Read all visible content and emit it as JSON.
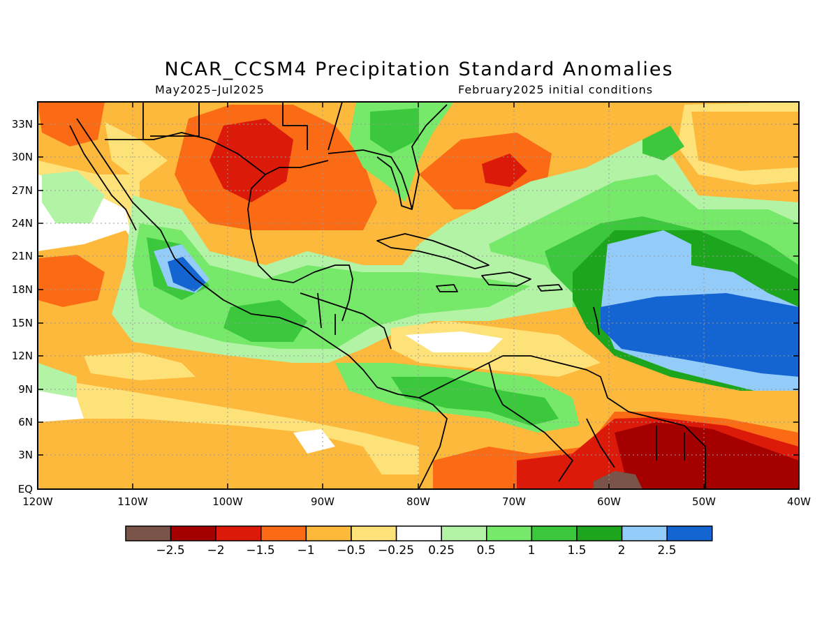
{
  "header": {
    "title": "NCAR_CCSM4 Precipitation Standard Anomalies",
    "period": "May2025–Jul2025",
    "init": "February2025 initial conditions"
  },
  "axes": {
    "lat_labels": [
      "33N",
      "30N",
      "27N",
      "24N",
      "21N",
      "18N",
      "15N",
      "12N",
      "9N",
      "6N",
      "3N",
      "EQ"
    ],
    "lon_labels": [
      "120W",
      "110W",
      "100W",
      "90W",
      "80W",
      "70W",
      "60W",
      "50W",
      "40W"
    ]
  },
  "legend": {
    "labels": [
      "−2.5",
      "−2",
      "−1.5",
      "−1",
      "−0.5",
      "−0.25",
      "0.25",
      "0.5",
      "1",
      "1.5",
      "2",
      "2.5"
    ],
    "colors": [
      "#7b5449",
      "#a50000",
      "#dc1a0a",
      "#fb6a14",
      "#fdb93c",
      "#fde27a",
      "#ffffff",
      "#b3f3a6",
      "#76e86a",
      "#3cc83c",
      "#1ea51e",
      "#94ccf9",
      "#1464d2"
    ]
  },
  "map_style": {
    "background": "#ffffff",
    "grid": "dotted",
    "coastline_color": "#000000"
  }
}
